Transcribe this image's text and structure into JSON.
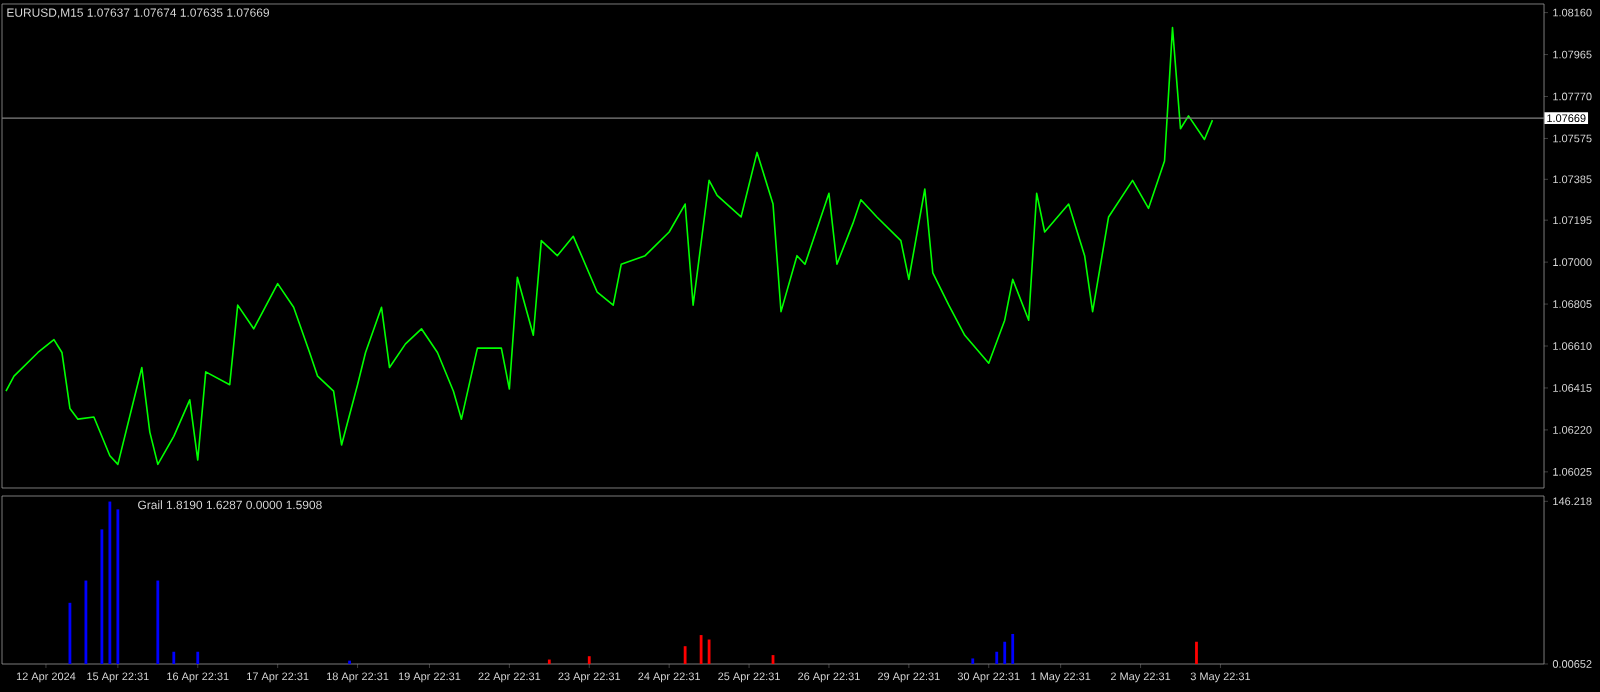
{
  "chart_data": [
    {
      "type": "line",
      "title": "EURUSD,M15  1.07637 1.07674 1.07635 1.07669",
      "ylim": [
        1.0595,
        1.082
      ],
      "tick_labels": "y",
      "categories": [
        null,
        null,
        null,
        null,
        null,
        null,
        null,
        null,
        null,
        null,
        null,
        null,
        null,
        null,
        null,
        null,
        null,
        null,
        null,
        null,
        null,
        null,
        null,
        null,
        null,
        null,
        null,
        null,
        null,
        null,
        null,
        null,
        null,
        null,
        null,
        null,
        null,
        null,
        null,
        null,
        null,
        null,
        null,
        null,
        null,
        null,
        null,
        null,
        null,
        null,
        null,
        null,
        null,
        null,
        null,
        null,
        null,
        null,
        null,
        null,
        null,
        null,
        null,
        null,
        null,
        null,
        null,
        null,
        null,
        null,
        null,
        null,
        null,
        null,
        null,
        null,
        null,
        null,
        null,
        null,
        null,
        null,
        null,
        null,
        null,
        null,
        null,
        null,
        null,
        null,
        null,
        null,
        null,
        null,
        null,
        null,
        null,
        null,
        null,
        null,
        null,
        null,
        null,
        null,
        null,
        null,
        null,
        null,
        null,
        null,
        null,
        null,
        null,
        null,
        null,
        null,
        null,
        null,
        null,
        null,
        null,
        null,
        null,
        null,
        null,
        null,
        null,
        null,
        null,
        null,
        null,
        null,
        null,
        null,
        null,
        null,
        null,
        null,
        null,
        null,
        null,
        null,
        null,
        null,
        null,
        null,
        null,
        null,
        null,
        null,
        null,
        null,
        null,
        null,
        null,
        null,
        null,
        null,
        null,
        null,
        null,
        null,
        null,
        null,
        null,
        null,
        null,
        null,
        null,
        null,
        null,
        null,
        null,
        null,
        null,
        null,
        null,
        null,
        null,
        null,
        null,
        null,
        null,
        null,
        null,
        null,
        null,
        null,
        null,
        null,
        null,
        null,
        null
      ],
      "yticks": [
        {
          "value": 1.0816,
          "label": "1.08160"
        },
        {
          "value": 1.07965,
          "label": "1.07965"
        },
        {
          "value": 1.0777,
          "label": "1.07770"
        },
        {
          "value": 1.07575,
          "label": "1.07575"
        },
        {
          "value": 1.07385,
          "label": "1.07385"
        },
        {
          "value": 1.07195,
          "label": "1.07195"
        },
        {
          "value": 1.07,
          "label": "1.07000"
        },
        {
          "value": 1.06805,
          "label": "1.06805"
        },
        {
          "value": 1.0661,
          "label": "1.06610"
        },
        {
          "value": 1.06415,
          "label": "1.06415"
        },
        {
          "value": 1.0622,
          "label": "1.06220"
        },
        {
          "value": 1.06025,
          "label": "1.06025"
        }
      ],
      "ref_lines": [
        {
          "axis": "y",
          "value": 1.07669,
          "label": "1.07669",
          "color": "#808080"
        }
      ],
      "series": [
        {
          "color": "#00ff00",
          "values": [
            1.064,
            1.0647,
            null,
            null,
            1.0658,
            null,
            1.0664,
            1.0658,
            1.0632,
            1.0627,
            null,
            1.0628,
            null,
            1.061,
            1.0606,
            null,
            null,
            1.0651,
            1.0621,
            1.0606,
            null,
            1.0619,
            null,
            1.0636,
            1.0608,
            1.0649,
            null,
            null,
            1.0643,
            1.068,
            null,
            1.0669,
            null,
            null,
            1.069,
            null,
            1.0679,
            null,
            1.0658,
            1.0647,
            null,
            1.064,
            1.0615,
            null,
            1.0643,
            1.0658,
            null,
            1.0679,
            1.0651,
            null,
            1.0662,
            null,
            1.0669,
            null,
            1.0658,
            null,
            1.064,
            1.0627,
            null,
            1.066,
            null,
            null,
            1.066,
            1.0641,
            1.0693,
            null,
            1.0666,
            1.071,
            null,
            1.0703,
            null,
            1.0712,
            null,
            null,
            1.0686,
            null,
            1.068,
            1.0699,
            null,
            null,
            1.0703,
            null,
            null,
            1.0714,
            null,
            1.0727,
            1.068,
            null,
            1.0738,
            1.0731,
            null,
            null,
            1.0721,
            null,
            1.0751,
            null,
            1.0727,
            1.0677,
            null,
            1.0703,
            1.0699,
            null,
            null,
            1.0732,
            1.0699,
            null,
            1.0718,
            1.0729,
            null,
            1.0721,
            null,
            null,
            1.071,
            1.0692,
            null,
            1.0734,
            1.0695,
            null,
            1.068,
            null,
            1.0666,
            null,
            null,
            1.0653,
            null,
            1.0673,
            1.0692,
            null,
            1.0673,
            1.0732,
            1.0714,
            null,
            null,
            1.0727,
            null,
            1.0703,
            1.0677,
            null,
            1.0721,
            null,
            null,
            1.0738,
            null,
            1.0725,
            null,
            1.0747,
            1.0809,
            1.0762,
            1.0768,
            null,
            1.0757,
            1.0766,
            null,
            null,
            null,
            null,
            null,
            null,
            null,
            null,
            null,
            null,
            null,
            null,
            null,
            null,
            null,
            null,
            null,
            null,
            null,
            null,
            null,
            null,
            null,
            null,
            null,
            null,
            null,
            null,
            null,
            null,
            null,
            null,
            null,
            null,
            null,
            null,
            null,
            null,
            null,
            null,
            null
          ]
        }
      ]
    },
    {
      "type": "bar",
      "title": "Grail 1.8190 1.6287 0.0000 1.5908",
      "ylim": [
        0,
        151
      ],
      "categories": [
        null,
        null,
        null,
        null,
        null,
        "12 Apr 2024",
        null,
        null,
        null,
        null,
        null,
        null,
        null,
        null,
        "15 Apr 22:31",
        null,
        null,
        null,
        null,
        null,
        null,
        null,
        null,
        null,
        "16 Apr 22:31",
        null,
        null,
        null,
        null,
        null,
        null,
        null,
        null,
        null,
        "17 Apr 22:31",
        null,
        null,
        null,
        null,
        null,
        null,
        null,
        null,
        null,
        "18 Apr 22:31",
        null,
        null,
        null,
        null,
        null,
        null,
        null,
        null,
        "19 Apr 22:31",
        null,
        null,
        null,
        null,
        null,
        null,
        null,
        null,
        null,
        "22 Apr 22:31",
        null,
        null,
        null,
        null,
        null,
        null,
        null,
        null,
        null,
        "23 Apr 22:31",
        null,
        null,
        null,
        null,
        null,
        null,
        null,
        null,
        null,
        "24 Apr 22:31",
        null,
        null,
        null,
        null,
        null,
        null,
        null,
        null,
        null,
        "25 Apr 22:31",
        null,
        null,
        null,
        null,
        null,
        null,
        null,
        null,
        null,
        "26 Apr 22:31",
        null,
        null,
        null,
        null,
        null,
        null,
        null,
        null,
        null,
        "29 Apr 22:31",
        null,
        null,
        null,
        null,
        null,
        null,
        null,
        null,
        null,
        "30 Apr 22:31",
        null,
        null,
        null,
        null,
        null,
        null,
        null,
        null,
        "1 May 22:31",
        null,
        null,
        null,
        null,
        null,
        null,
        null,
        null,
        null,
        "2 May 22:31",
        null,
        null,
        null,
        null,
        null,
        null,
        null,
        null,
        null,
        "3 May 22:31",
        null,
        null,
        null,
        null,
        null,
        null,
        null,
        null,
        null,
        null,
        null,
        null,
        null,
        null,
        null,
        null,
        null,
        null,
        null,
        null,
        null,
        null,
        null,
        null,
        null,
        null,
        null,
        null,
        null,
        null,
        null,
        null,
        null,
        null,
        null,
        null,
        null,
        null,
        null,
        null
      ],
      "yticks": [
        0.00652,
        146.218
      ],
      "series": [
        {
          "color": "#0000ff",
          "values": [
            null,
            null,
            null,
            null,
            null,
            null,
            null,
            null,
            55,
            null,
            75,
            null,
            121,
            146,
            139,
            null,
            null,
            null,
            null,
            75,
            null,
            11,
            null,
            null,
            11,
            null,
            null,
            null,
            null,
            null,
            null,
            null,
            null,
            null,
            null,
            null,
            null,
            null,
            null,
            null,
            null,
            null,
            null,
            3,
            null,
            null,
            null,
            null,
            null,
            null,
            null,
            null,
            null,
            null,
            null,
            null,
            null,
            null,
            null,
            null,
            null,
            null,
            null,
            null,
            null,
            null,
            null,
            null,
            null,
            null,
            null,
            null,
            null,
            null,
            null,
            null,
            null,
            null,
            null,
            null,
            null,
            null,
            null,
            null,
            null,
            null,
            null,
            null,
            null,
            null,
            null,
            null,
            null,
            null,
            null,
            null,
            null,
            null,
            null,
            null,
            null,
            null,
            null,
            null,
            null,
            null,
            null,
            null,
            null,
            null,
            null,
            null,
            null,
            null,
            null,
            null,
            null,
            null,
            null,
            null,
            null,
            5,
            null,
            null,
            11,
            20,
            27,
            null,
            null,
            null,
            null,
            null,
            null,
            null,
            null,
            null,
            null,
            null,
            null,
            null,
            null,
            null,
            null,
            null,
            null,
            null,
            null,
            null,
            null,
            null,
            null,
            null,
            null,
            null,
            null,
            null,
            null,
            null,
            null,
            null,
            null,
            null,
            null,
            null,
            null,
            null,
            null,
            null,
            null,
            null,
            null,
            null,
            null,
            null,
            null,
            null,
            null,
            null,
            null,
            null,
            null,
            null,
            null,
            null,
            null,
            null,
            null,
            null,
            null,
            null,
            null,
            null,
            null
          ]
        },
        {
          "color": "#ff0000",
          "values": [
            null,
            null,
            null,
            null,
            null,
            null,
            null,
            null,
            null,
            null,
            null,
            null,
            null,
            null,
            null,
            null,
            null,
            null,
            null,
            null,
            null,
            null,
            null,
            null,
            null,
            null,
            null,
            null,
            null,
            null,
            null,
            null,
            null,
            null,
            null,
            null,
            null,
            null,
            null,
            null,
            null,
            null,
            null,
            null,
            null,
            null,
            null,
            null,
            null,
            null,
            null,
            null,
            null,
            null,
            null,
            null,
            null,
            null,
            null,
            null,
            null,
            null,
            null,
            null,
            null,
            null,
            null,
            null,
            4,
            null,
            null,
            null,
            null,
            7,
            null,
            null,
            null,
            null,
            null,
            null,
            null,
            null,
            null,
            null,
            null,
            16,
            null,
            26,
            22,
            null,
            null,
            null,
            null,
            null,
            null,
            null,
            8,
            null,
            null,
            null,
            null,
            null,
            null,
            null,
            null,
            null,
            null,
            null,
            null,
            null,
            null,
            null,
            null,
            null,
            null,
            null,
            null,
            null,
            null,
            null,
            null,
            null,
            null,
            null,
            null,
            null,
            null,
            null,
            null,
            null,
            null,
            null,
            null,
            null,
            null,
            null,
            null,
            null,
            null,
            null,
            null,
            null,
            null,
            null,
            null,
            null,
            null,
            null,
            null,
            20,
            null,
            null,
            null,
            null,
            null,
            null,
            null,
            null,
            null,
            null,
            null,
            null,
            null,
            null,
            null,
            null,
            null,
            null,
            null,
            null,
            null,
            null,
            null,
            null,
            null,
            null,
            null,
            null,
            null,
            null,
            null,
            null,
            null,
            null,
            null,
            null,
            null,
            null,
            null,
            null,
            null,
            null,
            null
          ]
        }
      ]
    }
  ]
}
